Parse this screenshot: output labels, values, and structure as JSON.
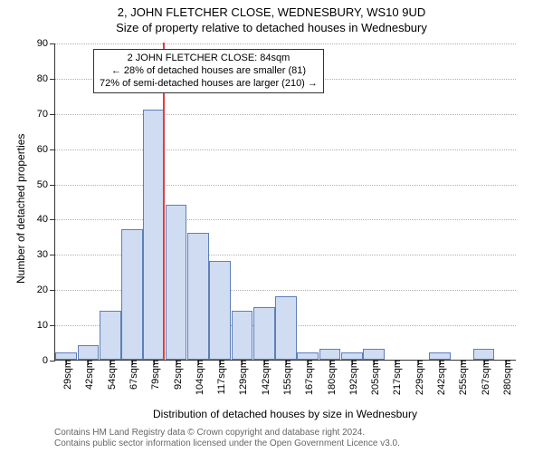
{
  "chart": {
    "type": "histogram",
    "title_main": "2, JOHN FLETCHER CLOSE, WEDNESBURY, WS10 9UD",
    "title_sub": "Size of property relative to detached houses in Wednesbury",
    "ylabel": "Number of detached properties",
    "xlabel": "Distribution of detached houses by size in Wednesbury",
    "ylim": [
      0,
      90
    ],
    "ytick_step": 10,
    "bar_fill": "#cfdcf2",
    "bar_border": "#5e7fb8",
    "grid_color": "#b0b0b0",
    "reference_line_color": "#e63b3b",
    "background": "#ffffff",
    "categories": [
      "29sqm",
      "42sqm",
      "54sqm",
      "67sqm",
      "79sqm",
      "92sqm",
      "104sqm",
      "117sqm",
      "129sqm",
      "142sqm",
      "155sqm",
      "167sqm",
      "180sqm",
      "192sqm",
      "205sqm",
      "217sqm",
      "229sqm",
      "242sqm",
      "255sqm",
      "267sqm",
      "280sqm"
    ],
    "values": [
      2,
      4,
      14,
      37,
      71,
      44,
      36,
      28,
      14,
      15,
      18,
      2,
      3,
      2,
      3,
      0,
      0,
      2,
      0,
      3,
      0
    ],
    "reference_value_sqm": 84,
    "info_box": {
      "line1": "2 JOHN FLETCHER CLOSE: 84sqm",
      "line2": "← 28% of detached houses are smaller (81)",
      "line3": "72% of semi-detached houses are larger (210) →"
    },
    "footer_line1": "Contains HM Land Registry data © Crown copyright and database right 2024.",
    "footer_line2": "Contains public sector information licensed under the Open Government Licence v3.0.",
    "title_fontsize": 13,
    "label_fontsize": 12,
    "tick_fontsize": 11,
    "footer_fontsize": 10
  }
}
